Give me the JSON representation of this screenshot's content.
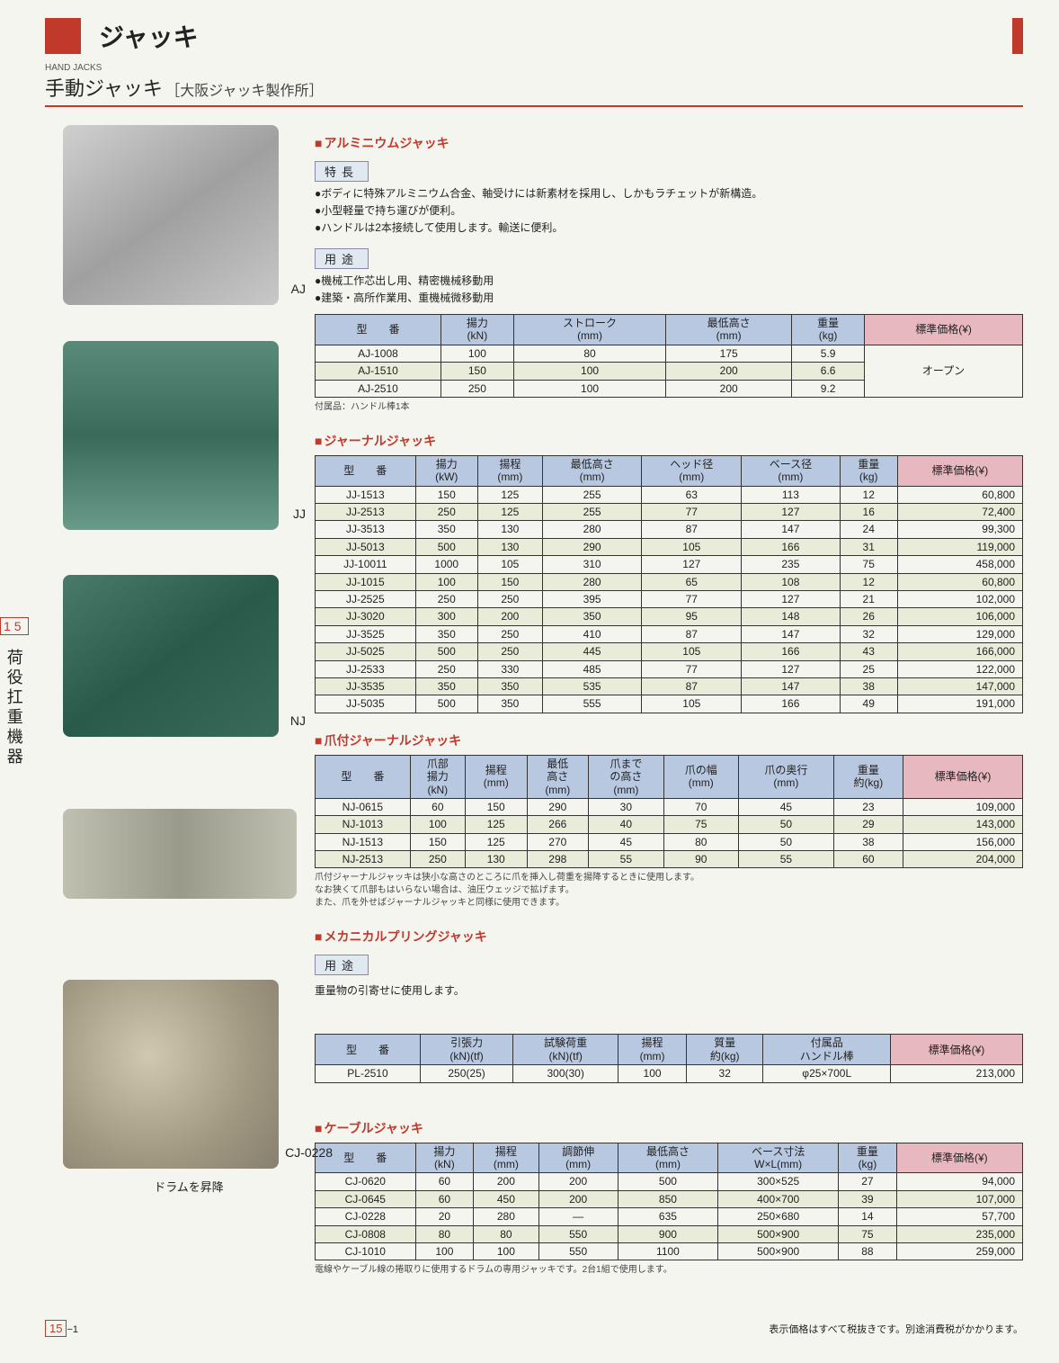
{
  "header": {
    "category": "ジャッキ",
    "eng_small": "HAND JACKS",
    "sub_main": "手動ジャッキ",
    "manufacturer": "［大阪ジャッキ製作所］"
  },
  "sidebar": {
    "tab_num": "15",
    "tab_text": "荷役扛重機器"
  },
  "img_labels": {
    "aj": "AJ",
    "jj": "JJ",
    "nj": "NJ",
    "cj": "CJ-0228",
    "cj_caption": "ドラムを昇降"
  },
  "aluminum": {
    "title": "アルミニウムジャッキ",
    "tag1": "特長",
    "features": [
      "ボディに特殊アルミニウム合金、軸受けには新素材を採用し、しかもラチェットが新構造。",
      "小型軽量で持ち運びが便利。",
      "ハンドルは2本接続して使用します。輸送に便利。"
    ],
    "tag2": "用途",
    "uses": [
      "機械工作芯出し用、精密機械移動用",
      "建築・高所作業用、重機械微移動用"
    ],
    "headers": [
      "型　　番",
      "揚力\n(kN)",
      "ストローク\n(mm)",
      "最低高さ\n(mm)",
      "重量\n(kg)",
      "標準価格(¥)"
    ],
    "rows": [
      [
        "AJ-1008",
        "100",
        "80",
        "175",
        "5.9"
      ],
      [
        "AJ-1510",
        "150",
        "100",
        "200",
        "6.6"
      ],
      [
        "AJ-2510",
        "250",
        "100",
        "200",
        "9.2"
      ]
    ],
    "price_merged": "オープン",
    "note": "付属品：ハンドル棒1本"
  },
  "journal": {
    "title": "ジャーナルジャッキ",
    "headers": [
      "型　　番",
      "揚力\n(kW)",
      "揚程\n(mm)",
      "最低高さ\n(mm)",
      "ヘッド径\n(mm)",
      "ベース径\n(mm)",
      "重量\n(kg)",
      "標準価格(¥)"
    ],
    "rows": [
      [
        "JJ-1513",
        "150",
        "125",
        "255",
        "63",
        "113",
        "12",
        "60,800"
      ],
      [
        "JJ-2513",
        "250",
        "125",
        "255",
        "77",
        "127",
        "16",
        "72,400"
      ],
      [
        "JJ-3513",
        "350",
        "130",
        "280",
        "87",
        "147",
        "24",
        "99,300"
      ],
      [
        "JJ-5013",
        "500",
        "130",
        "290",
        "105",
        "166",
        "31",
        "119,000"
      ],
      [
        "JJ-10011",
        "1000",
        "105",
        "310",
        "127",
        "235",
        "75",
        "458,000"
      ],
      [
        "JJ-1015",
        "100",
        "150",
        "280",
        "65",
        "108",
        "12",
        "60,800"
      ],
      [
        "JJ-2525",
        "250",
        "250",
        "395",
        "77",
        "127",
        "21",
        "102,000"
      ],
      [
        "JJ-3020",
        "300",
        "200",
        "350",
        "95",
        "148",
        "26",
        "106,000"
      ],
      [
        "JJ-3525",
        "350",
        "250",
        "410",
        "87",
        "147",
        "32",
        "129,000"
      ],
      [
        "JJ-5025",
        "500",
        "250",
        "445",
        "105",
        "166",
        "43",
        "166,000"
      ],
      [
        "JJ-2533",
        "250",
        "330",
        "485",
        "77",
        "127",
        "25",
        "122,000"
      ],
      [
        "JJ-3535",
        "350",
        "350",
        "535",
        "87",
        "147",
        "38",
        "147,000"
      ],
      [
        "JJ-5035",
        "500",
        "350",
        "555",
        "105",
        "166",
        "49",
        "191,000"
      ]
    ]
  },
  "claw": {
    "title": "爪付ジャーナルジャッキ",
    "headers": [
      "型　　番",
      "爪部\n揚力\n(kN)",
      "揚程\n(mm)",
      "最低\n高さ\n(mm)",
      "爪まで\nの高さ\n(mm)",
      "爪の幅\n(mm)",
      "爪の奥行\n(mm)",
      "重量\n約(kg)",
      "標準価格(¥)"
    ],
    "rows": [
      [
        "NJ-0615",
        "60",
        "150",
        "290",
        "30",
        "70",
        "45",
        "23",
        "109,000"
      ],
      [
        "NJ-1013",
        "100",
        "125",
        "266",
        "40",
        "75",
        "50",
        "29",
        "143,000"
      ],
      [
        "NJ-1513",
        "150",
        "125",
        "270",
        "45",
        "80",
        "50",
        "38",
        "156,000"
      ],
      [
        "NJ-2513",
        "250",
        "130",
        "298",
        "55",
        "90",
        "55",
        "60",
        "204,000"
      ]
    ],
    "note": "爪付ジャーナルジャッキは狭小な高さのところに爪を挿入し荷重を揚降するときに使用します。\nなお狭くて爪部もはいらない場合は、油圧ウェッジで拡げます。\nまた、爪を外せばジャーナルジャッキと同様に使用できます。"
  },
  "mechanical": {
    "title": "メカニカルプリングジャッキ",
    "tag": "用途",
    "use_text": "重量物の引寄せに使用します。",
    "headers": [
      "型　　番",
      "引張力\n(kN)(tf)",
      "試験荷重\n(kN)(tf)",
      "揚程\n(mm)",
      "質量\n約(kg)",
      "付属品\nハンドル棒",
      "標準価格(¥)"
    ],
    "rows": [
      [
        "PL-2510",
        "250(25)",
        "300(30)",
        "100",
        "32",
        "φ25×700L",
        "213,000"
      ]
    ]
  },
  "cable": {
    "title": "ケーブルジャッキ",
    "headers": [
      "型　　番",
      "揚力\n(kN)",
      "揚程\n(mm)",
      "調節伸\n(mm)",
      "最低高さ\n(mm)",
      "ベース寸法\nW×L(mm)",
      "重量\n(kg)",
      "標準価格(¥)"
    ],
    "rows": [
      [
        "CJ-0620",
        "60",
        "200",
        "200",
        "500",
        "300×525",
        "27",
        "94,000"
      ],
      [
        "CJ-0645",
        "60",
        "450",
        "200",
        "850",
        "400×700",
        "39",
        "107,000"
      ],
      [
        "CJ-0228",
        "20",
        "280",
        "—",
        "635",
        "250×680",
        "14",
        "57,700"
      ],
      [
        "CJ-0808",
        "80",
        "80",
        "550",
        "900",
        "500×900",
        "75",
        "235,000"
      ],
      [
        "CJ-1010",
        "100",
        "100",
        "550",
        "1100",
        "500×900",
        "88",
        "259,000"
      ]
    ],
    "note": "電線やケーブル線の捲取りに使用するドラムの専用ジャッキです。2台1組で使用します。"
  },
  "footer": {
    "page": "15",
    "page_sub": "−1",
    "right": "表示価格はすべて税抜きです。別途消費税がかかります。"
  }
}
